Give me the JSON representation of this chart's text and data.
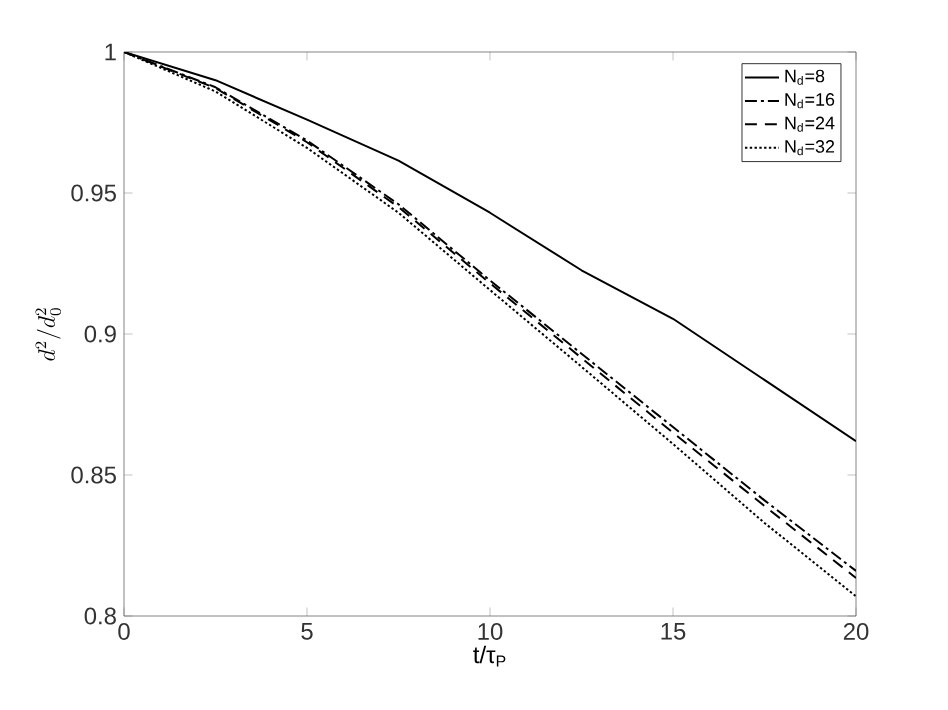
{
  "chart_data": {
    "type": "line",
    "xlabel": "t/τ$_{P}$",
    "ylabel": "d^2/d_0^2",
    "x": [
      0,
      2.5,
      5,
      7.5,
      10,
      12.5,
      15,
      17.5,
      20
    ],
    "series": [
      {
        "name": "N$_{d}$=8",
        "color": "#000000",
        "line_style": "solid",
        "values": [
          1,
          0.99,
          0.976,
          0.9615,
          0.943,
          0.9226,
          0.9054,
          0.8837,
          0.862
        ]
      },
      {
        "name": "N$_{d}$=16",
        "color": "#000000",
        "line_style": "dashdot",
        "values": [
          1,
          0.9875,
          0.9686,
          0.946,
          0.919,
          0.893,
          0.867,
          0.841,
          0.816
        ]
      },
      {
        "name": "N$_{d}$=24",
        "color": "#000000",
        "line_style": "dashed",
        "values": [
          1,
          0.9872,
          0.968,
          0.945,
          0.918,
          0.8915,
          0.865,
          0.839,
          0.8135
        ]
      },
      {
        "name": "N$_{d}$=32",
        "color": "#000000",
        "line_style": "dotted",
        "values": [
          1,
          0.986,
          0.966,
          0.943,
          0.9156,
          0.8884,
          0.861,
          0.833,
          0.807
        ]
      }
    ],
    "xlim": [
      0,
      20
    ],
    "ylim": [
      0.8,
      1
    ],
    "xticks": [
      0,
      5,
      10,
      15,
      20
    ],
    "yticks": [
      0.8,
      0.85,
      0.9,
      0.95,
      1
    ],
    "legend": "top right",
    "marker": "none",
    "grid": false
  }
}
